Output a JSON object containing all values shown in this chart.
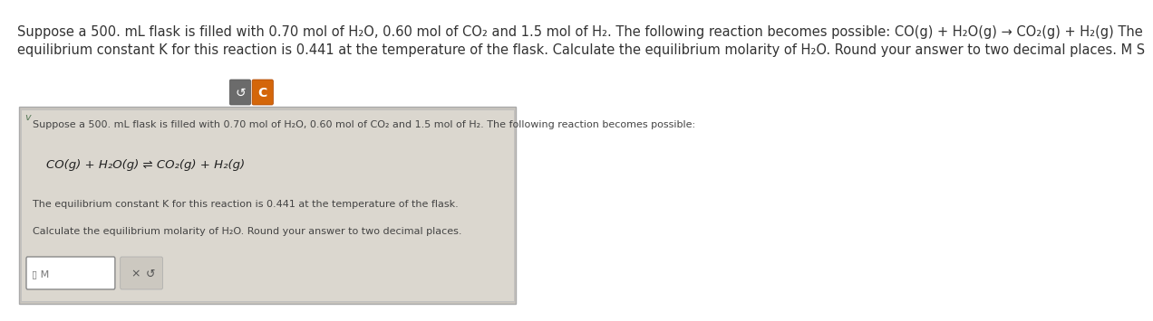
{
  "bg_color": "#ffffff",
  "header_text_line1": "Suppose a 500. mL flask is filled with 0.70 mol of H₂O, 0.60 mol of CO₂ and 1.5 mol of H₂. The following reaction becomes possible: CO(g) + H₂O(g) → CO₂(g) + H₂(g) The",
  "header_text_line2": "equilibrium constant K for this reaction is 0.441 at the temperature of the flask. Calculate the equilibrium molarity of H₂O. Round your answer to two decimal places. M S",
  "btn_undo_color": "#6b6b6b",
  "btn_c_color": "#d4660a",
  "outer_card_bg": "#c9c5be",
  "inner_card_bg": "#dbd7cf",
  "checkmark_color": "#5a7a5a",
  "card_line1": "Suppose a 500. mL flask is filled with 0.70 mol of H₂O, 0.60 mol of CO₂ and 1.5 mol of H₂. The following reaction becomes possible:",
  "card_reaction": "CO(g) + H₂O(g) ⇌ CO₂(g) + H₂(g)",
  "card_line2": "The equilibrium constant K for this reaction is 0.441 at the temperature of the flask.",
  "card_line3": "Calculate the equilibrium molarity of H₂O. Round your answer to two decimal places.",
  "input_placeholder": "▯ M",
  "header_fontsize": 10.5,
  "card_fontsize": 8.0,
  "reaction_fontsize": 9.5
}
